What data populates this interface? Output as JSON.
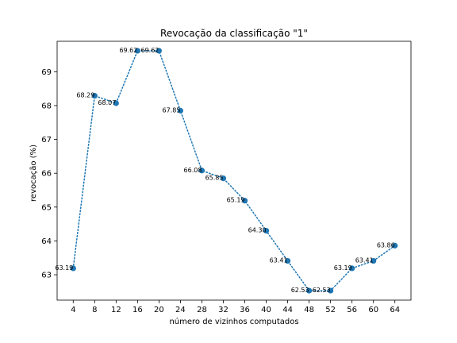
{
  "chart_data": {
    "type": "line",
    "title": "Revocação da classificação \"1\"",
    "xlabel": "número de vizinhos computados",
    "ylabel": "revocação (%)",
    "x": [
      4,
      8,
      12,
      16,
      20,
      24,
      28,
      32,
      36,
      40,
      44,
      48,
      52,
      56,
      60,
      64
    ],
    "y": [
      63.19,
      68.29,
      68.07,
      69.62,
      69.62,
      67.85,
      66.08,
      65.85,
      65.19,
      64.3,
      63.41,
      62.53,
      62.53,
      63.19,
      63.41,
      63.86
    ],
    "data_labels": [
      "63.19",
      "68.29",
      "68.07",
      "69.62",
      "69.62",
      "67.85",
      "66.08",
      "65.85",
      "65.19",
      "64.30",
      "63.41",
      "62.53",
      "62.53",
      "63.19",
      "63.41",
      "63.86"
    ],
    "xticks": [
      4,
      8,
      12,
      16,
      20,
      24,
      28,
      32,
      36,
      40,
      44,
      48,
      52,
      56,
      60,
      64
    ],
    "xtick_labels": [
      "4",
      "8",
      "12",
      "16",
      "20",
      "24",
      "28",
      "32",
      "36",
      "40",
      "44",
      "48",
      "52",
      "56",
      "60",
      "64"
    ],
    "yticks": [
      63,
      64,
      65,
      66,
      67,
      68,
      69
    ],
    "ytick_labels": [
      "63",
      "64",
      "65",
      "66",
      "67",
      "68",
      "69"
    ],
    "xlim": [
      1,
      67
    ],
    "ylim": [
      62.25,
      69.9
    ],
    "grid": false,
    "line_style": "dotted",
    "marker": "circle",
    "color": "#1f77b4"
  }
}
